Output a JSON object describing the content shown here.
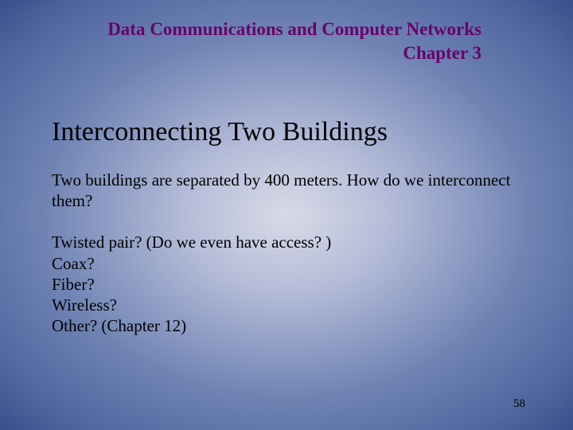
{
  "header": {
    "title": "Data Communications and Computer Networks",
    "chapter": "Chapter 3"
  },
  "main": {
    "title": "Interconnecting Two Buildings",
    "intro": "Two buildings are separated by 400 meters.  How do we interconnect them?",
    "options": {
      "line1": "Twisted pair?  (Do we even have access? )",
      "line2": "Coax?",
      "line3": "Fiber?",
      "line4": "Wireless?",
      "line5": "Other? (Chapter 12)"
    }
  },
  "slideNumber": "58",
  "styling": {
    "slide_width": 720,
    "slide_height": 540,
    "background_gradient": {
      "type": "radial",
      "stops": [
        "#d8dae6",
        "#b4bcd8",
        "#7084b4",
        "#5068a0",
        "#3a4f8a"
      ]
    },
    "header_color": "#6a006a",
    "header_fontsize": 23,
    "header_fontweight": "bold",
    "title_fontsize": 34,
    "title_color": "#000000",
    "body_fontsize": 21,
    "body_color": "#000000",
    "slidenum_fontsize": 15,
    "font_family": "Times New Roman"
  }
}
